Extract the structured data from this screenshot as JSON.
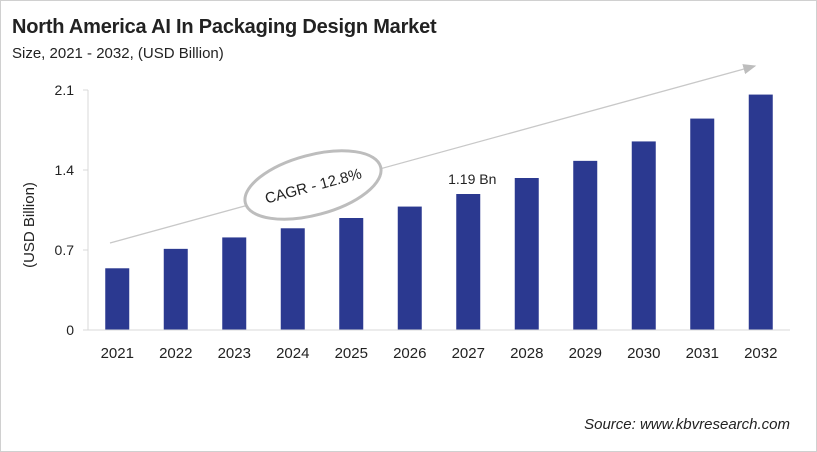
{
  "chart_data": {
    "type": "bar",
    "title": "North America AI In Packaging Design Market",
    "subtitle": "Size, 2021 - 2032, (USD Billion)",
    "ylabel": "(USD Billion)",
    "xlabel": "",
    "categories": [
      "2021",
      "2022",
      "2023",
      "2024",
      "2025",
      "2026",
      "2027",
      "2028",
      "2029",
      "2030",
      "2031",
      "2032"
    ],
    "values": [
      0.54,
      0.71,
      0.81,
      0.89,
      0.98,
      1.08,
      1.19,
      1.33,
      1.48,
      1.65,
      1.85,
      2.06
    ],
    "ylim": [
      0,
      2.1
    ],
    "yticks": [
      "0",
      "0.7",
      "1.4",
      "2.1"
    ],
    "grid": false,
    "bar_color": "#2b3990",
    "annotations": {
      "cagr": "CAGR - 12.8%",
      "data_label": "1.19 Bn",
      "data_label_category": "2027"
    },
    "source": "Source: www.kbvresearch.com"
  }
}
